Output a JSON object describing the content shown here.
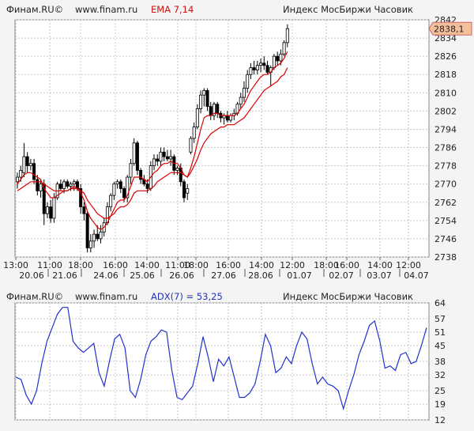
{
  "top_panel": {
    "brand": "Финам.RU©",
    "site": "www.finam.ru",
    "indicator": "EMA 7,14",
    "instrument": "Индекс МосБиржи Часовик",
    "last_price": "2838,1"
  },
  "bottom_panel": {
    "brand": "Финам.RU©",
    "site": "www.finam.ru",
    "indicator": "ADX(7) = 53,25",
    "instrument": "Индекс МосБиржи Часовик"
  },
  "colors": {
    "background": "#f4f4f4",
    "plot_bg": "#ffffff",
    "candle_up": "#ffffff",
    "candle_down": "#000000",
    "ema_fast": "#dd0000",
    "ema_slow": "#dd0000",
    "adx_line": "#2233cc",
    "grid": "#c8c8c8",
    "price_label_bg": "#f4c09a"
  },
  "chart_data": [
    {
      "type": "candlestick",
      "title": "Индекс МосБиржи Часовик",
      "indicator": "EMA 7,14",
      "ylim": [
        2738,
        2842
      ],
      "y_ticks": [
        2738,
        2746,
        2754,
        2762,
        2770,
        2778,
        2786,
        2794,
        2802,
        2810,
        2818,
        2826,
        2834,
        2842
      ],
      "time_labels": [
        "13:00",
        "11:00",
        "18:00",
        "16:00",
        "14:00",
        "11:00",
        "18:00",
        "16:00",
        "14:00",
        "12:00",
        "18:00",
        "16:00",
        "14:00",
        "12:00"
      ],
      "date_labels": [
        "20.06",
        "21.06",
        "24.06",
        "25.06",
        "26.06",
        "27.06",
        "28.06",
        "01.07",
        "02.07",
        "03.07",
        "04.07"
      ],
      "grid": true,
      "last_value": 2838.1,
      "candles": [
        {
          "o": 2771,
          "h": 2775,
          "l": 2768,
          "c": 2773
        },
        {
          "o": 2773,
          "h": 2778,
          "l": 2771,
          "c": 2776
        },
        {
          "o": 2775,
          "h": 2788,
          "l": 2773,
          "c": 2782
        },
        {
          "o": 2782,
          "h": 2784,
          "l": 2775,
          "c": 2778
        },
        {
          "o": 2778,
          "h": 2781,
          "l": 2776,
          "c": 2779
        },
        {
          "o": 2779,
          "h": 2781,
          "l": 2770,
          "c": 2772
        },
        {
          "o": 2772,
          "h": 2774,
          "l": 2765,
          "c": 2767
        },
        {
          "o": 2767,
          "h": 2772,
          "l": 2764,
          "c": 2770
        },
        {
          "o": 2770,
          "h": 2772,
          "l": 2752,
          "c": 2757
        },
        {
          "o": 2757,
          "h": 2762,
          "l": 2755,
          "c": 2760
        },
        {
          "o": 2760,
          "h": 2763,
          "l": 2753,
          "c": 2755
        },
        {
          "o": 2755,
          "h": 2766,
          "l": 2753,
          "c": 2764
        },
        {
          "o": 2764,
          "h": 2771,
          "l": 2763,
          "c": 2770
        },
        {
          "o": 2770,
          "h": 2772,
          "l": 2767,
          "c": 2768
        },
        {
          "o": 2768,
          "h": 2772,
          "l": 2766,
          "c": 2771
        },
        {
          "o": 2771,
          "h": 2772,
          "l": 2768,
          "c": 2769
        },
        {
          "o": 2769,
          "h": 2771,
          "l": 2767,
          "c": 2770
        },
        {
          "o": 2770,
          "h": 2772,
          "l": 2767,
          "c": 2771
        },
        {
          "o": 2771,
          "h": 2772,
          "l": 2767,
          "c": 2768
        },
        {
          "o": 2768,
          "h": 2770,
          "l": 2757,
          "c": 2760
        },
        {
          "o": 2760,
          "h": 2762,
          "l": 2754,
          "c": 2757
        },
        {
          "o": 2757,
          "h": 2758,
          "l": 2740,
          "c": 2742
        },
        {
          "o": 2742,
          "h": 2748,
          "l": 2740,
          "c": 2745
        },
        {
          "o": 2745,
          "h": 2750,
          "l": 2742,
          "c": 2748
        },
        {
          "o": 2748,
          "h": 2752,
          "l": 2745,
          "c": 2746
        },
        {
          "o": 2746,
          "h": 2752,
          "l": 2744,
          "c": 2749
        },
        {
          "o": 2749,
          "h": 2755,
          "l": 2747,
          "c": 2753
        },
        {
          "o": 2753,
          "h": 2762,
          "l": 2752,
          "c": 2760
        },
        {
          "o": 2760,
          "h": 2766,
          "l": 2758,
          "c": 2765
        },
        {
          "o": 2765,
          "h": 2771,
          "l": 2763,
          "c": 2770
        },
        {
          "o": 2770,
          "h": 2772,
          "l": 2768,
          "c": 2771
        },
        {
          "o": 2771,
          "h": 2772,
          "l": 2766,
          "c": 2768
        },
        {
          "o": 2768,
          "h": 2769,
          "l": 2762,
          "c": 2764
        },
        {
          "o": 2764,
          "h": 2774,
          "l": 2762,
          "c": 2773
        },
        {
          "o": 2773,
          "h": 2781,
          "l": 2770,
          "c": 2779
        },
        {
          "o": 2779,
          "h": 2790,
          "l": 2778,
          "c": 2788
        },
        {
          "o": 2788,
          "h": 2789,
          "l": 2774,
          "c": 2776
        },
        {
          "o": 2776,
          "h": 2777,
          "l": 2770,
          "c": 2772
        },
        {
          "o": 2772,
          "h": 2774,
          "l": 2769,
          "c": 2770
        },
        {
          "o": 2770,
          "h": 2772,
          "l": 2766,
          "c": 2768
        },
        {
          "o": 2768,
          "h": 2780,
          "l": 2767,
          "c": 2778
        },
        {
          "o": 2778,
          "h": 2783,
          "l": 2776,
          "c": 2781
        },
        {
          "o": 2781,
          "h": 2783,
          "l": 2778,
          "c": 2780
        },
        {
          "o": 2780,
          "h": 2786,
          "l": 2778,
          "c": 2784
        },
        {
          "o": 2784,
          "h": 2786,
          "l": 2780,
          "c": 2782
        },
        {
          "o": 2782,
          "h": 2785,
          "l": 2780,
          "c": 2781
        },
        {
          "o": 2781,
          "h": 2785,
          "l": 2778,
          "c": 2782
        },
        {
          "o": 2782,
          "h": 2783,
          "l": 2774,
          "c": 2776
        },
        {
          "o": 2776,
          "h": 2778,
          "l": 2774,
          "c": 2777
        },
        {
          "o": 2777,
          "h": 2779,
          "l": 2769,
          "c": 2771
        },
        {
          "o": 2771,
          "h": 2772,
          "l": 2762,
          "c": 2764
        },
        {
          "o": 2766,
          "h": 2770,
          "l": 2763,
          "c": 2768
        },
        {
          "o": 2784,
          "h": 2791,
          "l": 2783,
          "c": 2790
        },
        {
          "o": 2790,
          "h": 2797,
          "l": 2788,
          "c": 2795
        },
        {
          "o": 2795,
          "h": 2805,
          "l": 2794,
          "c": 2803
        },
        {
          "o": 2803,
          "h": 2811,
          "l": 2801,
          "c": 2809
        },
        {
          "o": 2809,
          "h": 2812,
          "l": 2804,
          "c": 2811
        },
        {
          "o": 2811,
          "h": 2812,
          "l": 2802,
          "c": 2804
        },
        {
          "o": 2804,
          "h": 2806,
          "l": 2798,
          "c": 2800
        },
        {
          "o": 2800,
          "h": 2806,
          "l": 2798,
          "c": 2805
        },
        {
          "o": 2805,
          "h": 2806,
          "l": 2799,
          "c": 2801
        },
        {
          "o": 2801,
          "h": 2802,
          "l": 2797,
          "c": 2799
        },
        {
          "o": 2799,
          "h": 2801,
          "l": 2796,
          "c": 2800
        },
        {
          "o": 2800,
          "h": 2802,
          "l": 2797,
          "c": 2798
        },
        {
          "o": 2798,
          "h": 2801,
          "l": 2797,
          "c": 2800
        },
        {
          "o": 2800,
          "h": 2803,
          "l": 2798,
          "c": 2801
        },
        {
          "o": 2801,
          "h": 2806,
          "l": 2800,
          "c": 2805
        },
        {
          "o": 2805,
          "h": 2810,
          "l": 2803,
          "c": 2808
        },
        {
          "o": 2808,
          "h": 2815,
          "l": 2806,
          "c": 2812
        },
        {
          "o": 2812,
          "h": 2820,
          "l": 2810,
          "c": 2818
        },
        {
          "o": 2818,
          "h": 2823,
          "l": 2816,
          "c": 2821
        },
        {
          "o": 2821,
          "h": 2824,
          "l": 2818,
          "c": 2820
        },
        {
          "o": 2820,
          "h": 2824,
          "l": 2818,
          "c": 2822
        },
        {
          "o": 2822,
          "h": 2825,
          "l": 2819,
          "c": 2823
        },
        {
          "o": 2823,
          "h": 2826,
          "l": 2820,
          "c": 2822
        },
        {
          "o": 2822,
          "h": 2824,
          "l": 2818,
          "c": 2819
        },
        {
          "o": 2819,
          "h": 2822,
          "l": 2813,
          "c": 2821
        },
        {
          "o": 2821,
          "h": 2827,
          "l": 2820,
          "c": 2826
        },
        {
          "o": 2826,
          "h": 2828,
          "l": 2822,
          "c": 2824
        },
        {
          "o": 2824,
          "h": 2829,
          "l": 2822,
          "c": 2827
        },
        {
          "o": 2827,
          "h": 2833,
          "l": 2826,
          "c": 2832
        },
        {
          "o": 2832,
          "h": 2840,
          "l": 2830,
          "c": 2838.1
        }
      ],
      "series": [
        {
          "name": "EMA 7",
          "values": [
            2770,
            2772,
            2774,
            2775,
            2775,
            2774,
            2773,
            2772,
            2768,
            2766,
            2764,
            2764,
            2765,
            2766,
            2767,
            2767,
            2768,
            2769,
            2768,
            2766,
            2763,
            2758,
            2755,
            2753,
            2751,
            2750,
            2751,
            2753,
            2756,
            2759,
            2762,
            2763,
            2763,
            2765,
            2769,
            2773,
            2773,
            2773,
            2772,
            2771,
            2773,
            2775,
            2776,
            2778,
            2779,
            2779,
            2780,
            2779,
            2779,
            2777,
            2774,
            2773,
            2777,
            2782,
            2788,
            2794,
            2799,
            2800,
            2800,
            2801,
            2801,
            2800,
            2800,
            2800,
            2800,
            2800,
            2801,
            2803,
            2805,
            2808,
            2811,
            2813,
            2815,
            2817,
            2818,
            2818,
            2819,
            2821,
            2822,
            2823,
            2825,
            2828
          ]
        },
        {
          "name": "EMA 14",
          "values": [
            2767,
            2768,
            2769,
            2770,
            2771,
            2771,
            2771,
            2771,
            2770,
            2769,
            2768,
            2767,
            2767,
            2767,
            2767,
            2767,
            2768,
            2768,
            2768,
            2767,
            2766,
            2763,
            2761,
            2759,
            2757,
            2756,
            2755,
            2755,
            2756,
            2757,
            2759,
            2760,
            2760,
            2761,
            2763,
            2766,
            2767,
            2767,
            2767,
            2767,
            2768,
            2769,
            2771,
            2772,
            2773,
            2774,
            2775,
            2775,
            2775,
            2775,
            2774,
            2773,
            2775,
            2778,
            2781,
            2785,
            2788,
            2790,
            2792,
            2793,
            2794,
            2795,
            2795,
            2796,
            2796,
            2796,
            2797,
            2798,
            2799,
            2801,
            2803,
            2805,
            2807,
            2809,
            2811,
            2812,
            2813,
            2814,
            2815,
            2817,
            2818,
            2821
          ]
        }
      ]
    },
    {
      "type": "line",
      "title": "ADX(7) = 53,25",
      "ylim": [
        12,
        64
      ],
      "y_ticks": [
        12,
        19,
        25,
        32,
        38,
        45,
        51,
        57,
        64
      ],
      "grid": true,
      "last_value": 53.25,
      "series": [
        {
          "name": "ADX(7)",
          "values": [
            31,
            30,
            23,
            19,
            25,
            37,
            47,
            53,
            59,
            62,
            62,
            47,
            44,
            42,
            44,
            46,
            33,
            27,
            38,
            48,
            50,
            44,
            25,
            22,
            30,
            41,
            47,
            49,
            52,
            51,
            34,
            22,
            21,
            24,
            27,
            37,
            49,
            40,
            29,
            39,
            36,
            40,
            31,
            22,
            22,
            24,
            28,
            38,
            50,
            45,
            33,
            35,
            40,
            37,
            45,
            51,
            48,
            37,
            28,
            31,
            28,
            27,
            25,
            17,
            25,
            32,
            41,
            47,
            54,
            56,
            47,
            35,
            36,
            34,
            41,
            42,
            37,
            38,
            45,
            53
          ]
        }
      ]
    }
  ]
}
